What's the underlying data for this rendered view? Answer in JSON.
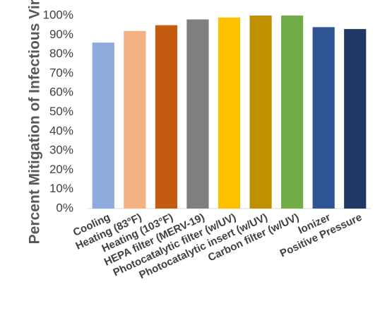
{
  "chart_data": {
    "type": "bar",
    "title": "",
    "xlabel": "",
    "ylabel": "Percent Mitigation of Infectious Virus",
    "ylim": [
      0,
      100
    ],
    "ytick_step": 10,
    "ytick_format": "percent",
    "grid": false,
    "legend": "none",
    "categories": [
      "Cooling",
      "Heating (83°F)",
      "Heating (103°F)",
      "HEPA filter (MERV-19)",
      "Photocatalytic filter (w/UV)",
      "Photocatalytic insert (w/UV)",
      "Carbon filter (w/UV)",
      "Ionizer",
      "Positive Pressure"
    ],
    "values": [
      86,
      92,
      95,
      98,
      99,
      100,
      100,
      94,
      93
    ],
    "colors": [
      "#8faadc",
      "#f4b183",
      "#c55a11",
      "#7f7f7f",
      "#ffc000",
      "#bf9000",
      "#70ad47",
      "#2f5597",
      "#203864"
    ]
  }
}
